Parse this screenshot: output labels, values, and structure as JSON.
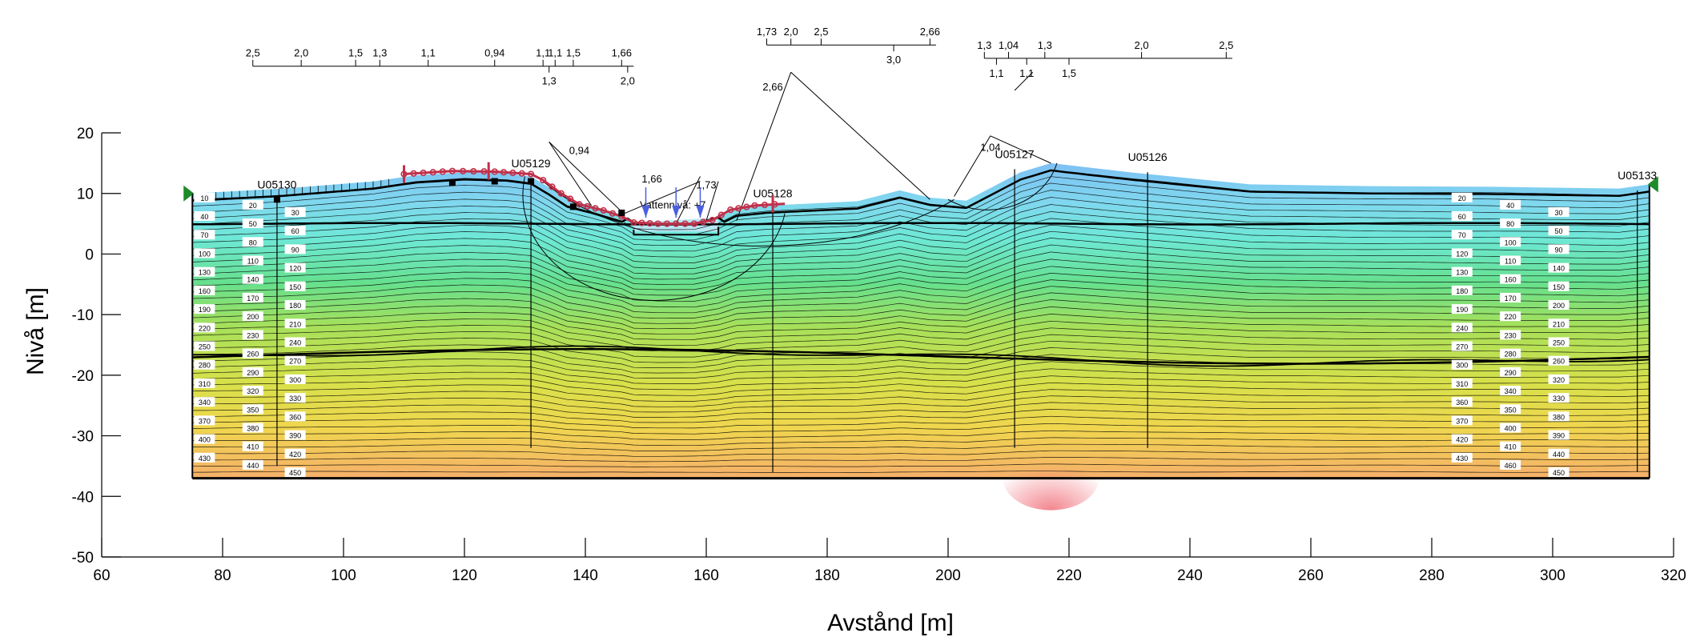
{
  "chart_data": {
    "type": "cross-section",
    "xlabel": "Avstånd [m]",
    "ylabel": "Nivå [m]",
    "xlim": [
      60,
      320
    ],
    "ylim": [
      -50,
      20
    ],
    "x_ticks": [
      "60",
      "80",
      "100",
      "120",
      "140",
      "160",
      "180",
      "200",
      "220",
      "240",
      "260",
      "280",
      "300",
      "320"
    ],
    "y_ticks": [
      "20",
      "10",
      "0",
      "-10",
      "-20",
      "-30",
      "-40",
      "-50"
    ],
    "boreholes": [
      {
        "name": "U05130",
        "x": 89,
        "top": 9,
        "bottom": -35
      },
      {
        "name": "U05129",
        "x": 131,
        "top": 12.5,
        "bottom": -32
      },
      {
        "name": "U05128",
        "x": 171,
        "top": 7.5,
        "bottom": -36
      },
      {
        "name": "U05127",
        "x": 211,
        "top": 14,
        "bottom": -32
      },
      {
        "name": "U05126",
        "x": 233,
        "top": 13.5,
        "bottom": -32
      },
      {
        "name": "U05133",
        "x": 314,
        "top": 10.5,
        "bottom": -36
      }
    ],
    "water_level_label": "Vattennivå: +7",
    "surface_profile": [
      [
        75,
        10
      ],
      [
        90,
        10.8
      ],
      [
        105,
        12
      ],
      [
        112,
        13
      ],
      [
        120,
        13.5
      ],
      [
        127,
        13.3
      ],
      [
        131,
        12.8
      ],
      [
        134,
        11
      ],
      [
        137,
        9
      ],
      [
        141,
        8
      ],
      [
        146,
        6.5
      ],
      [
        148,
        5.2
      ],
      [
        152,
        5
      ],
      [
        158,
        5
      ],
      [
        162,
        6
      ],
      [
        165,
        7.5
      ],
      [
        170,
        8
      ],
      [
        185,
        8.7
      ],
      [
        192,
        10.5
      ],
      [
        197,
        9.3
      ],
      [
        203,
        8.8
      ],
      [
        212,
        13.5
      ],
      [
        217,
        15
      ],
      [
        230,
        13.5
      ],
      [
        250,
        11.5
      ],
      [
        270,
        11.2
      ],
      [
        290,
        11.1
      ],
      [
        311,
        10.8
      ],
      [
        316,
        11.5
      ]
    ],
    "contour_levels_left": [
      "10",
      "20",
      "30",
      "40",
      "50",
      "60",
      "70",
      "80",
      "90",
      "100",
      "110",
      "120",
      "130",
      "140",
      "150",
      "160",
      "170",
      "180",
      "190",
      "200",
      "210",
      "220",
      "230",
      "240",
      "250",
      "260",
      "270",
      "280",
      "290",
      "300",
      "310",
      "320",
      "330",
      "340",
      "350",
      "360",
      "370",
      "380",
      "390",
      "400",
      "410",
      "420",
      "430",
      "440",
      "450"
    ],
    "contour_levels_right": [
      "20",
      "40",
      "30",
      "60",
      "80",
      "50",
      "70",
      "100",
      "90",
      "120",
      "110",
      "140",
      "130",
      "160",
      "150",
      "180",
      "170",
      "200",
      "190",
      "220",
      "210",
      "240",
      "230",
      "250",
      "270",
      "280",
      "260",
      "300",
      "290",
      "320",
      "310",
      "340",
      "330",
      "360",
      "350",
      "380",
      "370",
      "400",
      "390",
      "420",
      "410",
      "440",
      "430",
      "460",
      "450"
    ],
    "safety_factor_scales": [
      {
        "top": [
          "2,5",
          "2,0",
          "1,5",
          "1,3",
          "1,1",
          "0,94",
          "1,1",
          "1,1",
          "1,5",
          "1,66"
        ],
        "bottom": [
          "1,3",
          "2,0"
        ]
      },
      {
        "top": [
          "1,73",
          "2,0",
          "2,5",
          "2,66"
        ],
        "bottom": [
          "3,0"
        ]
      },
      {
        "top": [
          "1,3",
          "1,04",
          "1,3",
          "2,0",
          "2,5"
        ],
        "bottom": [
          "1,1",
          "1,1",
          "1,5"
        ]
      }
    ],
    "slip_surface_labels": [
      "0,94",
      "1,66",
      "1,73",
      "2,66",
      "1,04"
    ]
  }
}
